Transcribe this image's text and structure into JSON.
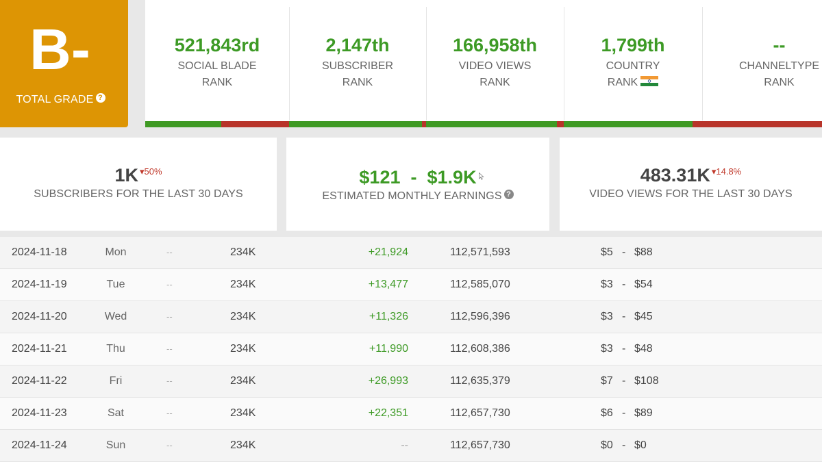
{
  "grade": {
    "letter": "B-",
    "label": "TOTAL GRADE",
    "help": "?"
  },
  "ranks": [
    {
      "value": "521,843rd",
      "label1": "SOCIAL BLADE",
      "label2": "RANK",
      "green_fraction": 0.53
    },
    {
      "value": "2,147th",
      "label1": "SUBSCRIBER",
      "label2": "RANK",
      "green_fraction": 0.97
    },
    {
      "value": "166,958th",
      "label1": "VIDEO VIEWS",
      "label2": "RANK",
      "green_fraction": 0.95
    },
    {
      "value": "1,799th",
      "label1": "COUNTRY",
      "label2": "RANK",
      "green_fraction": 0.93
    },
    {
      "value": "--",
      "label1": "CHANNELTYPE",
      "label2": "RANK",
      "green_fraction": 0.0
    }
  ],
  "cards": {
    "subscribers": {
      "value": "1K",
      "delta": "50%",
      "label": "SUBSCRIBERS FOR THE LAST 30 DAYS"
    },
    "earnings": {
      "low": "$121",
      "sep": "-",
      "high": "$1.9K",
      "label": "ESTIMATED MONTHLY EARNINGS",
      "help": "?"
    },
    "views": {
      "value": "483.31K",
      "delta": "14.8%",
      "label": "VIDEO VIEWS FOR THE LAST 30 DAYS"
    }
  },
  "rows": [
    {
      "date": "2024-11-18",
      "day": "Mon",
      "sub_change": "--",
      "subs": "234K",
      "views_change": "+21,924",
      "views_total": "112,571,593",
      "earn_low": "$5",
      "earn_sep": "-",
      "earn_high": "$88"
    },
    {
      "date": "2024-11-19",
      "day": "Tue",
      "sub_change": "--",
      "subs": "234K",
      "views_change": "+13,477",
      "views_total": "112,585,070",
      "earn_low": "$3",
      "earn_sep": "-",
      "earn_high": "$54"
    },
    {
      "date": "2024-11-20",
      "day": "Wed",
      "sub_change": "--",
      "subs": "234K",
      "views_change": "+11,326",
      "views_total": "112,596,396",
      "earn_low": "$3",
      "earn_sep": "-",
      "earn_high": "$45"
    },
    {
      "date": "2024-11-21",
      "day": "Thu",
      "sub_change": "--",
      "subs": "234K",
      "views_change": "+11,990",
      "views_total": "112,608,386",
      "earn_low": "$3",
      "earn_sep": "-",
      "earn_high": "$48"
    },
    {
      "date": "2024-11-22",
      "day": "Fri",
      "sub_change": "--",
      "subs": "234K",
      "views_change": "+26,993",
      "views_total": "112,635,379",
      "earn_low": "$7",
      "earn_sep": "-",
      "earn_high": "$108"
    },
    {
      "date": "2024-11-23",
      "day": "Sat",
      "sub_change": "--",
      "subs": "234K",
      "views_change": "+22,351",
      "views_total": "112,657,730",
      "earn_low": "$6",
      "earn_sep": "-",
      "earn_high": "$89"
    },
    {
      "date": "2024-11-24",
      "day": "Sun",
      "sub_change": "--",
      "subs": "234K",
      "views_change": "--",
      "views_total": "112,657,730",
      "earn_low": "$0",
      "earn_sep": "-",
      "earn_high": "$0"
    }
  ],
  "colors": {
    "grade_bg": "#dd9504",
    "positive": "#3d9a25",
    "negative": "#b8342a"
  }
}
